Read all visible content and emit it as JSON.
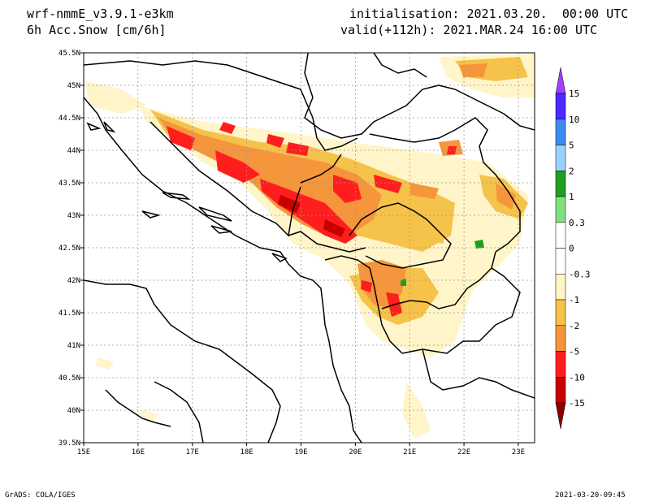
{
  "header": {
    "model": "wrf-nmmE_v3.9.1-e3km",
    "field": "6h Acc.Snow [cm/6h]",
    "initialisation": "initialisation: 2021.03.20.  00:00 UTC",
    "valid": "valid(+112h): 2021.MAR.24 16:00 UTC"
  },
  "map": {
    "lon_labels": [
      "15E",
      "16E",
      "17E",
      "18E",
      "19E",
      "20E",
      "21E",
      "22E",
      "23E"
    ],
    "lat_labels": [
      "45.5N",
      "45N",
      "44.5N",
      "44N",
      "43.5N",
      "43N",
      "42.5N",
      "42N",
      "41.5N",
      "41N",
      "40.5N",
      "40N",
      "39.5N"
    ],
    "lon_range": [
      15,
      23.3
    ],
    "lat_range": [
      39.5,
      45.5
    ],
    "grid": true
  },
  "colorbar": {
    "labels": [
      "15",
      "10",
      "5",
      "2",
      "1",
      "0.3",
      "0",
      "-0.3",
      "-1",
      "-2",
      "-5",
      "-10",
      "-15"
    ],
    "colors": [
      "#4b2bff",
      "#3c8cf0",
      "#9bd2fa",
      "#1f9f1f",
      "#7fe07f",
      "#ffffff",
      "#ffffff",
      "#fff5c8",
      "#f5c24a",
      "#f5953c",
      "#ff1e1e",
      "#c80000",
      "#8c0000"
    ],
    "top_arrow_color": "#a040ff",
    "bottom_arrow_color": "#8c0000"
  },
  "footer": {
    "left": "GrADS: COLA/IGES",
    "right": "2021-03-20-09:45"
  }
}
